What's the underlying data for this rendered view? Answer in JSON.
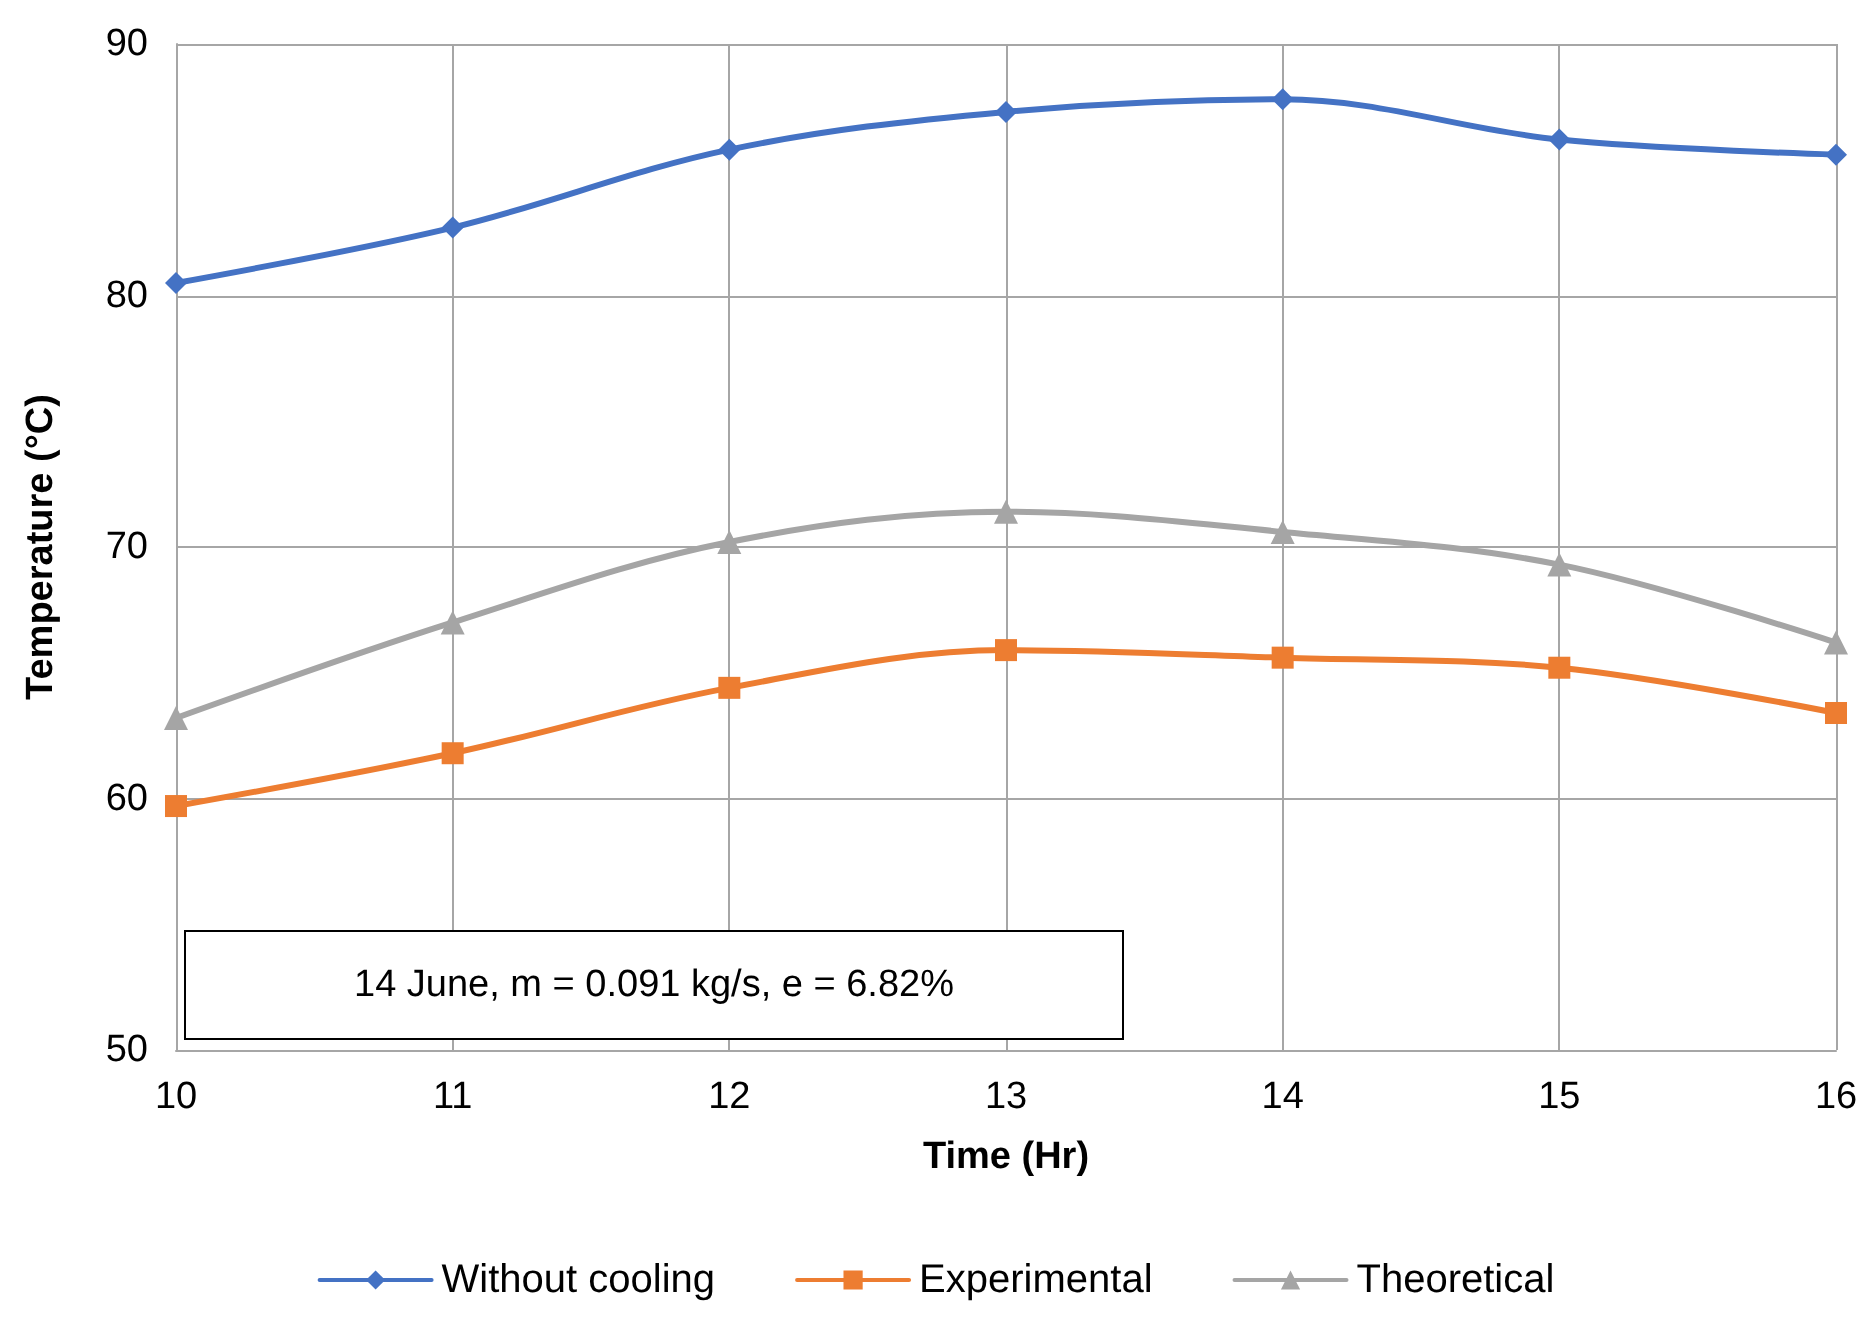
{
  "chart_data": {
    "type": "line",
    "xlabel": "Time (Hr)",
    "ylabel": "Temperature (°C)",
    "x": [
      10,
      11,
      12,
      13,
      14,
      15,
      16
    ],
    "series": [
      {
        "name": "Without cooling",
        "color": "#4472c4",
        "marker": "diamond",
        "values": [
          80.5,
          82.7,
          85.8,
          87.3,
          87.8,
          86.2,
          85.6
        ]
      },
      {
        "name": "Experimental",
        "color": "#ed7d31",
        "marker": "square",
        "values": [
          59.7,
          61.8,
          64.4,
          65.9,
          65.6,
          65.2,
          63.4
        ]
      },
      {
        "name": "Theoretical",
        "color": "#a5a5a5",
        "marker": "triangle",
        "values": [
          63.2,
          67.0,
          70.2,
          71.4,
          70.6,
          69.3,
          66.2
        ]
      }
    ],
    "xlim": [
      10,
      16
    ],
    "xticks": [
      10,
      11,
      12,
      13,
      14,
      15,
      16
    ],
    "ylim": [
      50,
      90
    ],
    "yticks": [
      50,
      60,
      70,
      80,
      90
    ],
    "grid": true,
    "legend": "bottom",
    "line_style": "solid",
    "annotations": [
      "14 June, m = 0.091 kg/s, e = 6.82%"
    ]
  }
}
